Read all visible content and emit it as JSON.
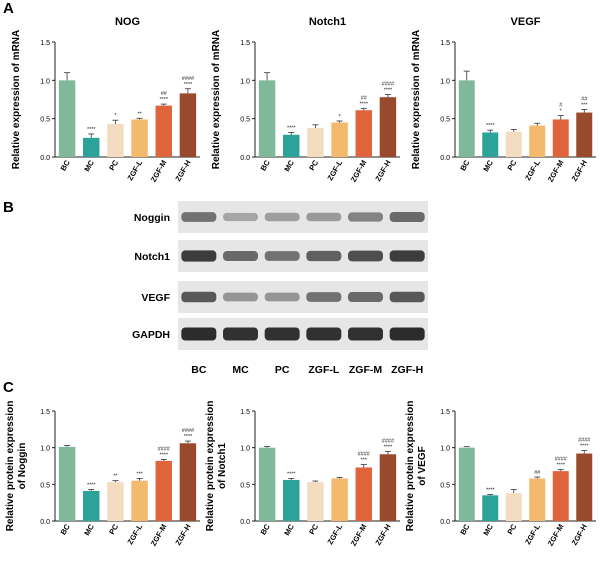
{
  "panel_labels": {
    "a": "A",
    "b": "B",
    "c": "C"
  },
  "colors": {
    "bc": "#7fb99a",
    "mc": "#2ba39a",
    "pc": "#f3dcc0",
    "zgf_l": "#f3b96c",
    "zgf_m": "#e0643b",
    "zgf_h": "#9a4a2c"
  },
  "chart_data": [
    {
      "id": "a1",
      "type": "bar",
      "title": "NOG",
      "ylabel": "Relative expression of mRNA",
      "xlabel": "",
      "ylim": [
        0,
        1.5
      ],
      "yticks": [
        "0.0",
        "0.5",
        "1.0",
        "1.5"
      ],
      "categories": [
        "BC",
        "MC",
        "PC",
        "ZGF-L",
        "ZGF-M",
        "ZGF-H"
      ],
      "values": [
        1.0,
        0.25,
        0.43,
        0.49,
        0.67,
        0.83
      ],
      "errors": [
        0.1,
        0.05,
        0.05,
        0.015,
        0.02,
        0.06
      ],
      "annotations": [
        "",
        "****",
        "*",
        "**",
        "##\n****",
        "####\n****"
      ]
    },
    {
      "id": "a2",
      "type": "bar",
      "title": "Notch1",
      "ylabel": "Relative expression of mRNA",
      "xlabel": "",
      "ylim": [
        0,
        1.5
      ],
      "yticks": [
        "0.0",
        "0.5",
        "1.0",
        "1.5"
      ],
      "categories": [
        "BC",
        "MC",
        "PC",
        "ZGF-L",
        "ZGF-M",
        "ZGF-H"
      ],
      "values": [
        1.0,
        0.29,
        0.38,
        0.45,
        0.61,
        0.78
      ],
      "errors": [
        0.1,
        0.03,
        0.04,
        0.02,
        0.025,
        0.035
      ],
      "annotations": [
        "",
        "****",
        "",
        "*",
        "##\n****",
        "####\n****"
      ]
    },
    {
      "id": "a3",
      "type": "bar",
      "title": "VEGF",
      "ylabel": "Relative expression of mRNA",
      "xlabel": "",
      "ylim": [
        0,
        1.5
      ],
      "yticks": [
        "0.0",
        "0.5",
        "1.0",
        "1.5"
      ],
      "categories": [
        "BC",
        "MC",
        "PC",
        "ZGF-L",
        "ZGF-M",
        "ZGF-H"
      ],
      "values": [
        1.0,
        0.32,
        0.33,
        0.41,
        0.49,
        0.58
      ],
      "errors": [
        0.12,
        0.03,
        0.03,
        0.03,
        0.05,
        0.04
      ],
      "annotations": [
        "",
        "****",
        "",
        "",
        "#\n*",
        "##\n***"
      ]
    },
    {
      "id": "c1",
      "type": "bar",
      "title": "",
      "ylabel": "Relative protein expression\nof Noggin",
      "xlabel": "",
      "ylim": [
        0,
        1.5
      ],
      "yticks": [
        "0.0",
        "0.5",
        "1.0",
        "1.5"
      ],
      "categories": [
        "BC",
        "MC",
        "PC",
        "ZGF-L",
        "ZGF-M",
        "ZGF-H"
      ],
      "values": [
        1.01,
        0.41,
        0.53,
        0.55,
        0.82,
        1.06
      ],
      "errors": [
        0.02,
        0.02,
        0.02,
        0.03,
        0.02,
        0.03
      ],
      "annotations": [
        "",
        "****",
        "**",
        "***",
        "####\n****",
        "####\n****"
      ]
    },
    {
      "id": "c2",
      "type": "bar",
      "title": "",
      "ylabel": "Relative protein expression\nof Notch1",
      "xlabel": "",
      "ylim": [
        0,
        1.5
      ],
      "yticks": [
        "0.0",
        "0.5",
        "1.0",
        "1.5"
      ],
      "categories": [
        "BC",
        "MC",
        "PC",
        "ZGF-L",
        "ZGF-M",
        "ZGF-H"
      ],
      "values": [
        1.0,
        0.56,
        0.53,
        0.58,
        0.73,
        0.91
      ],
      "errors": [
        0.015,
        0.02,
        0.015,
        0.015,
        0.04,
        0.04
      ],
      "annotations": [
        "",
        "****",
        "",
        "",
        "####\n***",
        "####\n****"
      ]
    },
    {
      "id": "c3",
      "type": "bar",
      "title": "",
      "ylabel": "Relative protein expression\nof VEGF",
      "xlabel": "",
      "ylim": [
        0,
        1.5
      ],
      "yticks": [
        "0.0",
        "0.5",
        "1.0",
        "1.5"
      ],
      "categories": [
        "BC",
        "MC",
        "PC",
        "ZGF-L",
        "ZGF-M",
        "ZGF-H"
      ],
      "values": [
        1.0,
        0.35,
        0.38,
        0.58,
        0.68,
        0.92
      ],
      "errors": [
        0.0,
        0.01,
        0.05,
        0.02,
        0.02,
        0.04
      ],
      "annotations": [
        "",
        "****",
        "",
        "##",
        "####\n****",
        "####\n****"
      ]
    }
  ],
  "western_blot": {
    "proteins": [
      "Noggin",
      "Notch1",
      "VEGF",
      "GAPDH"
    ],
    "lanes": [
      "BC",
      "MC",
      "PC",
      "ZGF-L",
      "ZGF-M",
      "ZGF-H"
    ],
    "band_intensity": [
      [
        0.55,
        0.25,
        0.3,
        0.32,
        0.45,
        0.6
      ],
      [
        0.85,
        0.6,
        0.55,
        0.65,
        0.75,
        0.85
      ],
      [
        0.7,
        0.35,
        0.35,
        0.55,
        0.6,
        0.7
      ],
      [
        0.95,
        0.92,
        0.92,
        0.92,
        0.92,
        0.95
      ]
    ]
  }
}
